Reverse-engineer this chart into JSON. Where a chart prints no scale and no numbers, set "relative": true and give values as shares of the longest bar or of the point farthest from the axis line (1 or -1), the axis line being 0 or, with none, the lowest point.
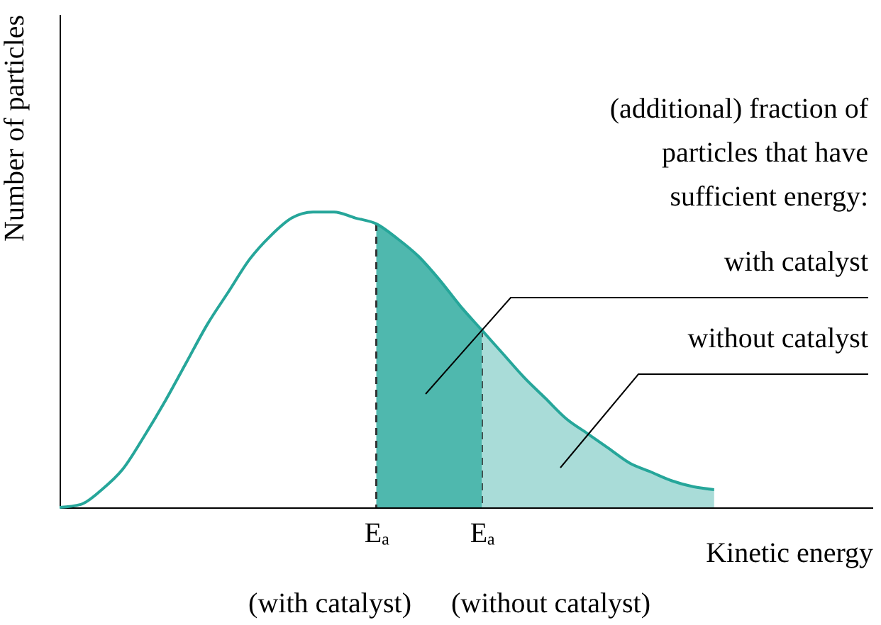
{
  "chart_data": {
    "type": "line",
    "relative": true,
    "xlabel": "Kinetic energy",
    "ylabel": "Number of particles",
    "categories": [
      null,
      null,
      null,
      null,
      null,
      null,
      null,
      null,
      null,
      null,
      null,
      null,
      null,
      null,
      null,
      "Eₐ",
      null,
      null,
      null,
      null,
      "Eₐ",
      null,
      null,
      null,
      null,
      null,
      null,
      null,
      null,
      null,
      null,
      null
    ],
    "series": [
      {
        "type": "area",
        "name": "without catalyst",
        "color": "#a9dcd8",
        "values": [
          null,
          null,
          null,
          null,
          null,
          null,
          null,
          null,
          null,
          null,
          null,
          null,
          null,
          null,
          null,
          null,
          null,
          null,
          null,
          null,
          0.6,
          0.52,
          0.44,
          0.37,
          0.3,
          0.25,
          0.2,
          0.15,
          0.12,
          0.09,
          0.07,
          0.06
        ]
      },
      {
        "type": "area",
        "name": "with catalyst",
        "color": "#4fb8ae",
        "values": [
          null,
          null,
          null,
          null,
          null,
          null,
          null,
          null,
          null,
          null,
          null,
          null,
          null,
          null,
          null,
          0.96,
          0.91,
          0.85,
          0.77,
          0.68,
          0.6,
          null,
          null,
          null,
          null,
          null,
          null,
          null,
          null,
          null,
          null,
          null
        ]
      },
      {
        "color": "#26a69a",
        "values": [
          0,
          0.01,
          0.06,
          0.13,
          0.24,
          0.36,
          0.49,
          0.62,
          0.73,
          0.84,
          0.92,
          0.98,
          1.0,
          1.0,
          0.98,
          0.96,
          0.91,
          0.85,
          0.77,
          0.68,
          0.6,
          0.52,
          0.44,
          0.37,
          0.3,
          0.25,
          0.2,
          0.15,
          0.12,
          0.09,
          0.07,
          0.06
        ]
      }
    ],
    "annotations": [
      "(additional) fraction of\nparticles that have\nsufficient energy:",
      "(with catalyst)",
      "(without catalyst)"
    ]
  }
}
